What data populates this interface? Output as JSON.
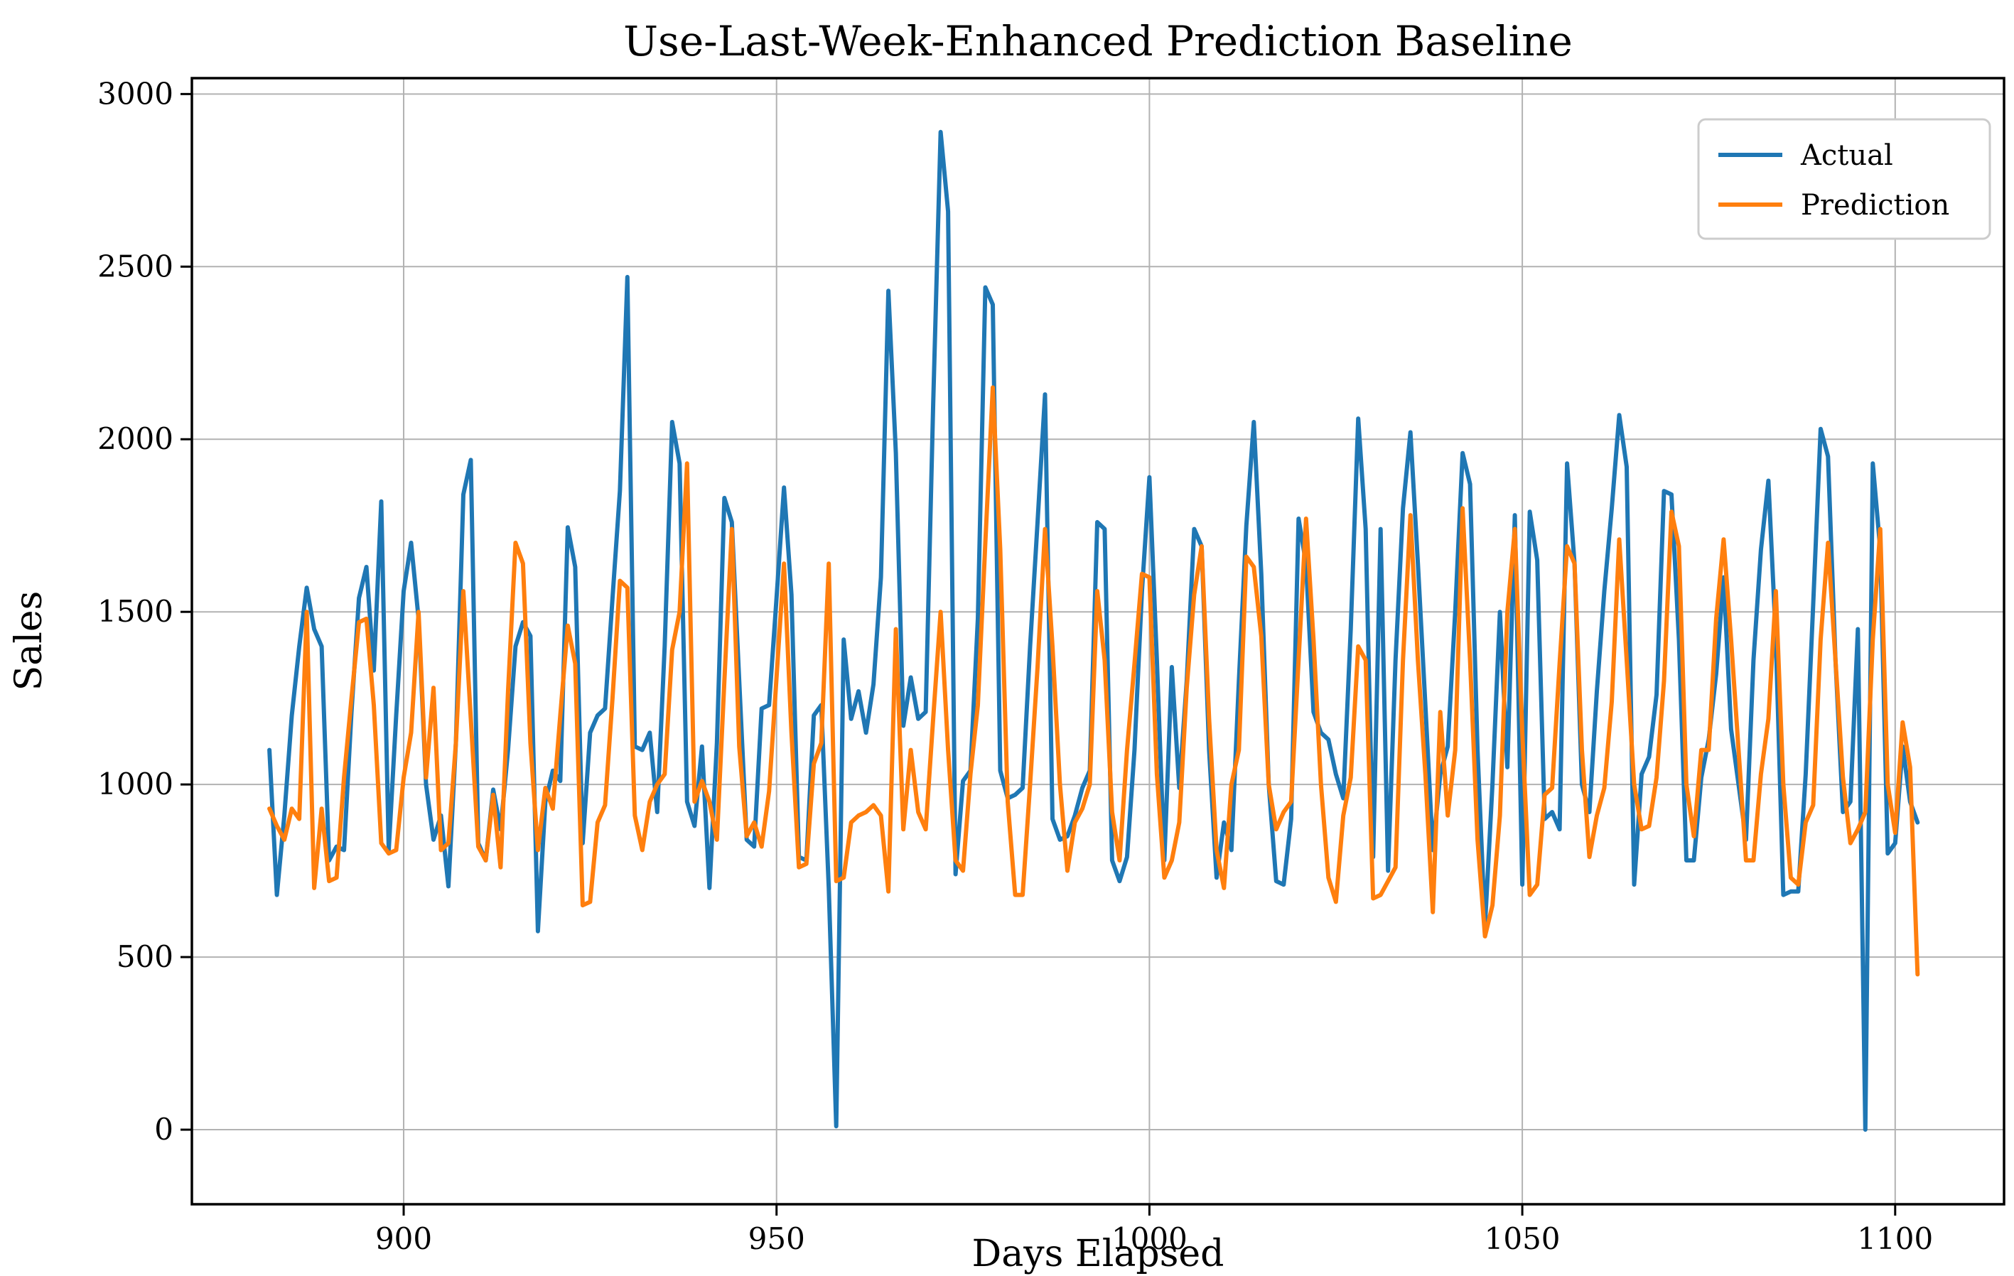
{
  "chart_data": {
    "type": "line",
    "title": "Use-Last-Week-Enhanced Prediction Baseline",
    "xlabel": "Days Elapsed",
    "ylabel": "Sales",
    "grid": true,
    "legend_position": "upper right",
    "x_start": 882,
    "x_step": 1,
    "xlim": [
      871.6,
      1114.6
    ],
    "ylim": [
      -216,
      3046
    ],
    "xticks": [
      900,
      950,
      1000,
      1050,
      1100
    ],
    "yticks": [
      0,
      500,
      1000,
      1500,
      2000,
      2500,
      3000
    ],
    "colors": {
      "actual": "#1f77b4",
      "prediction": "#ff7f0e",
      "grid": "#b2b2b2",
      "spine": "#000000"
    },
    "series": [
      {
        "name": "Actual",
        "color": "#1f77b4",
        "values": [
          1100,
          680,
          910,
          1200,
          1400,
          1570,
          1450,
          1400,
          780,
          820,
          810,
          1210,
          1540,
          1630,
          1330,
          1820,
          810,
          1200,
          1560,
          1700,
          1480,
          1000,
          840,
          910,
          705,
          1120,
          1840,
          1940,
          830,
          780,
          985,
          870,
          1100,
          1400,
          1470,
          1430,
          575,
          950,
          1040,
          1010,
          1745,
          1630,
          830,
          1150,
          1200,
          1220,
          1540,
          1850,
          2470,
          1110,
          1100,
          1150,
          920,
          1400,
          2050,
          1930,
          950,
          880,
          1110,
          700,
          1120,
          1830,
          1760,
          1300,
          840,
          820,
          1220,
          1230,
          1540,
          1860,
          1550,
          790,
          780,
          1200,
          1230,
          700,
          10,
          1420,
          1190,
          1270,
          1150,
          1290,
          1600,
          2430,
          1960,
          1170,
          1310,
          1190,
          1210,
          2100,
          2890,
          2660,
          740,
          1010,
          1040,
          1480,
          2440,
          2390,
          1040,
          960,
          970,
          990,
          1400,
          1760,
          2130,
          900,
          840,
          850,
          910,
          990,
          1040,
          1760,
          1740,
          780,
          720,
          790,
          1100,
          1560,
          1890,
          1360,
          780,
          1340,
          990,
          1300,
          1740,
          1690,
          1100,
          730,
          890,
          810,
          1300,
          1750,
          2050,
          1610,
          1000,
          720,
          710,
          900,
          1770,
          1640,
          1210,
          1150,
          1130,
          1030,
          960,
          1450,
          2060,
          1740,
          790,
          1740,
          750,
          1360,
          1800,
          2020,
          1640,
          1230,
          810,
          1030,
          1110,
          1500,
          1960,
          1870,
          1100,
          590,
          1000,
          1500,
          1050,
          1780,
          710,
          1790,
          1650,
          900,
          920,
          870,
          1930,
          1640,
          1000,
          920,
          1270,
          1560,
          1800,
          2070,
          1920,
          710,
          1030,
          1080,
          1260,
          1850,
          1840,
          1420,
          780,
          780,
          1020,
          1130,
          1320,
          1600,
          1160,
          1000,
          840,
          1360,
          1680,
          1880,
          1420,
          680,
          690,
          690,
          1030,
          1520,
          2030,
          1950,
          1360,
          920,
          950,
          1450,
          0,
          1930,
          1680,
          800,
          830,
          1110,
          950,
          890
        ]
      },
      {
        "name": "Prediction",
        "color": "#ff7f0e",
        "values": [
          930,
          880,
          840,
          930,
          900,
          1500,
          700,
          930,
          720,
          730,
          1020,
          1250,
          1470,
          1480,
          1230,
          830,
          800,
          810,
          1020,
          1150,
          1500,
          1020,
          1280,
          810,
          830,
          1120,
          1560,
          1190,
          820,
          780,
          970,
          760,
          1270,
          1700,
          1640,
          1120,
          810,
          990,
          930,
          1200,
          1460,
          1350,
          650,
          660,
          890,
          940,
          1250,
          1590,
          1570,
          910,
          810,
          950,
          1000,
          1030,
          1390,
          1500,
          1930,
          950,
          1010,
          950,
          840,
          1300,
          1740,
          1110,
          850,
          890,
          820,
          980,
          1310,
          1640,
          1150,
          760,
          770,
          1060,
          1120,
          1640,
          720,
          730,
          890,
          910,
          920,
          940,
          910,
          690,
          1450,
          870,
          1100,
          920,
          870,
          1190,
          1500,
          1100,
          780,
          750,
          1030,
          1230,
          1700,
          2150,
          1680,
          950,
          680,
          680,
          1000,
          1340,
          1740,
          1400,
          1000,
          750,
          890,
          930,
          1000,
          1560,
          1360,
          920,
          780,
          1100,
          1350,
          1610,
          1600,
          1030,
          730,
          780,
          890,
          1280,
          1550,
          1690,
          1190,
          810,
          700,
          1000,
          1100,
          1660,
          1630,
          1430,
          1000,
          870,
          920,
          950,
          1360,
          1770,
          1420,
          1000,
          730,
          660,
          910,
          1020,
          1400,
          1360,
          670,
          680,
          720,
          760,
          1360,
          1780,
          1360,
          1030,
          630,
          1210,
          910,
          1100,
          1800,
          1360,
          840,
          560,
          650,
          910,
          1500,
          1740,
          1150,
          680,
          710,
          970,
          990,
          1350,
          1690,
          1640,
          1100,
          790,
          910,
          990,
          1240,
          1710,
          1360,
          1000,
          870,
          880,
          1020,
          1300,
          1790,
          1690,
          1000,
          850,
          1100,
          1100,
          1480,
          1710,
          1420,
          1100,
          780,
          780,
          1030,
          1190,
          1560,
          1000,
          730,
          710,
          890,
          940,
          1420,
          1700,
          1360,
          1020,
          830,
          870,
          920,
          1420,
          1740,
          1000,
          860,
          1180,
          1050,
          450
        ]
      }
    ]
  },
  "legend": {
    "items": [
      {
        "label": "Actual"
      },
      {
        "label": "Prediction"
      }
    ]
  }
}
